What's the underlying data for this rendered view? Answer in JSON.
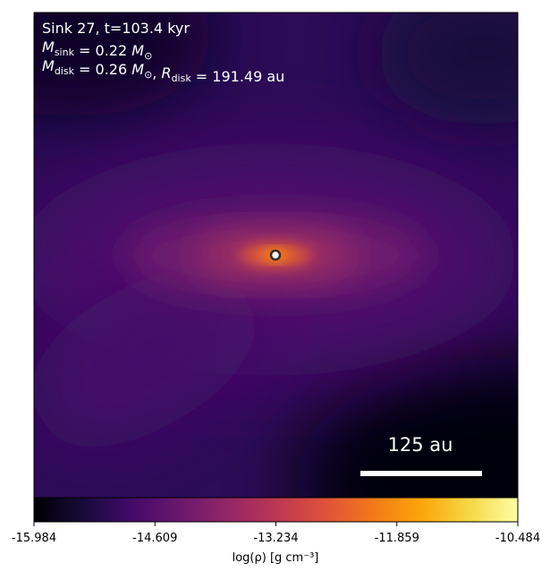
{
  "chart_data": {
    "type": "density-map",
    "annotations": [
      [
        {
          "text": "Sink 27, t=103.4 kyr"
        }
      ],
      [
        {
          "text": "M",
          "italic": true
        },
        {
          "sub": "sink"
        },
        {
          "text": " = 0.22 "
        },
        {
          "text": "M",
          "italic": true
        },
        {
          "sub": "⊙"
        }
      ],
      [
        {
          "text": "M",
          "italic": true
        },
        {
          "sub": "disk"
        },
        {
          "text": " = 0.26 "
        },
        {
          "text": "M",
          "italic": true
        },
        {
          "sub": "⊙"
        },
        {
          "text": ", "
        },
        {
          "text": "R",
          "italic": true
        },
        {
          "sub": "disk"
        },
        {
          "text": " = 191.49 au"
        }
      ]
    ],
    "scale_bar_label": "125 au",
    "colorbar": {
      "label": "log(ρ) [g cm⁻³]",
      "colormap": "inferno",
      "lim": [
        -15.984,
        -10.484
      ],
      "ticks": [
        -15.984,
        -14.609,
        -13.234,
        -11.859,
        -10.484
      ]
    }
  }
}
